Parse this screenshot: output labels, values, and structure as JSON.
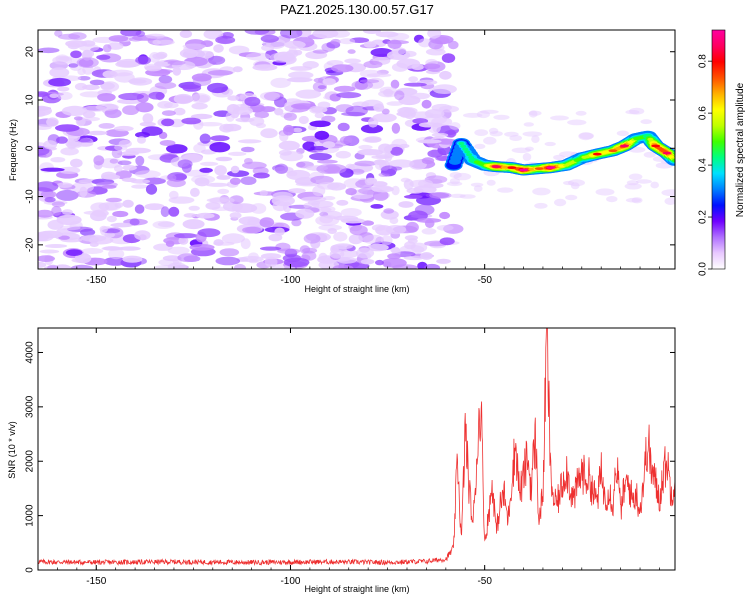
{
  "title": "PAZ1.2025.130.00.57.G17",
  "chart_data": [
    {
      "type": "heatmap",
      "xlabel": "Height of straight line (km)",
      "ylabel": "Frequency (Hz)",
      "xlim": [
        -165,
        -1
      ],
      "ylim": [
        -25,
        24.5
      ],
      "xticks": [
        -150,
        -100,
        -50
      ],
      "yticks": [
        -20,
        -10,
        0,
        10,
        20
      ],
      "colorbar": {
        "label": "Normalized spectral amplitude",
        "range": [
          0,
          0.92
        ],
        "ticks": [
          0.0,
          0.2,
          0.4,
          0.6,
          0.8
        ],
        "colors": [
          "#ffffff",
          "#e8c8ff",
          "#b070ff",
          "#7000ff",
          "#0010ff",
          "#0080ff",
          "#00e0ff",
          "#00ff80",
          "#40ff00",
          "#c0ff00",
          "#ffff00",
          "#ffb000",
          "#ff5000",
          "#ff0000",
          "#ff0060",
          "#ff00a0"
        ]
      },
      "noise_region": {
        "x": [
          -165,
          -58
        ],
        "y": [
          -25,
          24.5
        ],
        "amplitude": [
          0.02,
          0.15
        ]
      },
      "ridge": [
        {
          "x": -58,
          "y": -3.5,
          "a": 0.35
        },
        {
          "x": -56,
          "y": 1.0,
          "a": 0.4
        },
        {
          "x": -53,
          "y": -2.5,
          "a": 0.45
        },
        {
          "x": -50,
          "y": -3.5,
          "a": 0.5
        },
        {
          "x": -47,
          "y": -3.8,
          "a": 0.75
        },
        {
          "x": -43,
          "y": -4.0,
          "a": 0.65
        },
        {
          "x": -40,
          "y": -4.5,
          "a": 0.8
        },
        {
          "x": -36,
          "y": -4.2,
          "a": 0.6
        },
        {
          "x": -33,
          "y": -4.0,
          "a": 0.8
        },
        {
          "x": -29,
          "y": -3.5,
          "a": 0.55
        },
        {
          "x": -25,
          "y": -2.0,
          "a": 0.5
        },
        {
          "x": -21,
          "y": -1.2,
          "a": 0.65
        },
        {
          "x": -17,
          "y": -0.5,
          "a": 0.6
        },
        {
          "x": -14,
          "y": 0.5,
          "a": 0.75
        },
        {
          "x": -11,
          "y": 2.0,
          "a": 0.5
        },
        {
          "x": -8,
          "y": 2.5,
          "a": 0.45
        },
        {
          "x": -6,
          "y": 0.5,
          "a": 0.7
        },
        {
          "x": -3,
          "y": -1.0,
          "a": 0.75
        },
        {
          "x": -1,
          "y": -2.5,
          "a": 0.5
        }
      ]
    },
    {
      "type": "line",
      "xlabel": "Height of straight line (km)",
      "ylabel": "SNR (10 * v/v)",
      "xlim": [
        -165,
        -1
      ],
      "ylim": [
        0,
        4450
      ],
      "xticks": [
        -150,
        -100,
        -50
      ],
      "yticks": [
        0,
        1000,
        2000,
        3000,
        4000
      ],
      "color": "#ee3030",
      "series": [
        {
          "x": [
            -165,
            -150,
            -130,
            -110,
            -90,
            -75,
            -65,
            -60,
            -58,
            -57,
            -56,
            -55,
            -54,
            -53,
            -52,
            -51,
            -50,
            -49,
            -48,
            -47,
            -46,
            -45,
            -44,
            -43,
            -42,
            -41,
            -40,
            -39,
            -38,
            -37,
            -36,
            -35,
            -34,
            -33,
            -32,
            -31,
            -30,
            -29,
            -28,
            -27,
            -26,
            -25,
            -24,
            -23,
            -22,
            -21,
            -20,
            -19,
            -18,
            -17,
            -16,
            -15,
            -14,
            -13,
            -12,
            -11,
            -10,
            -9,
            -8,
            -7,
            -6,
            -5,
            -4,
            -3,
            -2,
            -1
          ],
          "y": [
            150,
            140,
            150,
            140,
            150,
            140,
            160,
            200,
            400,
            2100,
            500,
            2600,
            1500,
            800,
            2100,
            3200,
            500,
            1000,
            1600,
            700,
            1200,
            1400,
            900,
            1700,
            2300,
            1400,
            1700,
            2100,
            1500,
            2500,
            900,
            1400,
            4400,
            1700,
            1200,
            1300,
            1600,
            1900,
            1500,
            1300,
            1600,
            1800,
            1700,
            1700,
            1400,
            1300,
            1800,
            1300,
            1500,
            1200,
            2000,
            1100,
            1500,
            1600,
            1300,
            1400,
            1100,
            1700,
            2400,
            1800,
            1600,
            1300,
            1800,
            2000,
            1400,
            1700
          ]
        }
      ]
    }
  ]
}
